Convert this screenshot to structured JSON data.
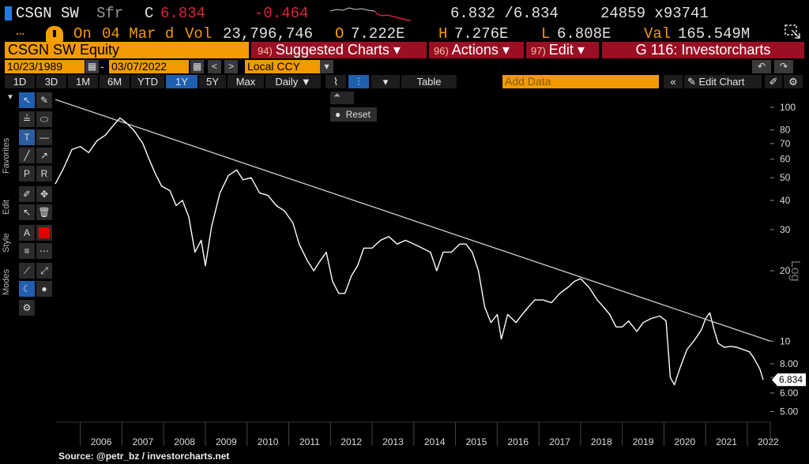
{
  "header": {
    "ticker": "CSGN SW",
    "currency": "Sfr",
    "last_label": "C",
    "last_price": "6.834",
    "change": "-0.464",
    "bid_ask": "6.832 /6.834",
    "size": "24859 x93741",
    "dots": "…",
    "on_label": "On",
    "date": "04 Mar d",
    "vol_label": "Vol",
    "volume": "23,796,746",
    "open_label": "O",
    "open": "7.222E",
    "high_label": "H",
    "high": "7.276E",
    "low_label": "L",
    "low": "6.808E",
    "val_label": "Val",
    "value": "165.549M"
  },
  "menus": {
    "security": "CSGN SW Equity",
    "suggested_num": "94)",
    "suggested": "Suggested Charts ▾",
    "actions_num": "96)",
    "actions": "Actions ▾",
    "edit_num": "97)",
    "edit": "Edit ▾",
    "function": "G 116: Investorcharts"
  },
  "dates": {
    "start": "10/23/1989",
    "dash": "-",
    "end": "03/07/2022",
    "prev": "<",
    "next": ">",
    "currency": "Local CCY"
  },
  "ranges": [
    "1D",
    "3D",
    "1M",
    "6M",
    "YTD",
    "1Y",
    "5Y",
    "Max"
  ],
  "active_range": "1Y",
  "frequency": "Daily ▼",
  "table_label": "Table",
  "add_data_placeholder": "Add Data",
  "edit_chart_label": "Edit Chart",
  "reset_label": "Reset",
  "side_labels": [
    "Favorites",
    "Edit",
    "Style",
    "Modes"
  ],
  "source": "Source: @petr_bz / investorcharts.net",
  "colors": {
    "price_line": "#ffffff",
    "trend_line": "#d0d0d0",
    "accent_orange": "#f29a00",
    "menu_red": "#9a0f23",
    "change_red": "#e0203a",
    "blue": "#1f5fb0"
  },
  "chart_data": {
    "type": "line",
    "scale": "log",
    "ylim": [
      4.5,
      115
    ],
    "y_ticks": [
      100,
      80,
      70,
      60,
      50,
      40,
      30,
      20,
      10,
      8.0,
      7.0,
      6.0,
      5.0
    ],
    "y_tick_labels": [
      "100",
      "80",
      "70",
      "60",
      "50",
      "40",
      "30",
      "20",
      "10",
      "8.00",
      "7.00",
      "6.00",
      "5.00"
    ],
    "y_axis_label": "Log",
    "x_ticks": [
      "2006",
      "2007",
      "2008",
      "2009",
      "2010",
      "2011",
      "2012",
      "2013",
      "2014",
      "2015",
      "2016",
      "2017",
      "2018",
      "2019",
      "2020",
      "2021",
      "2022"
    ],
    "xlim": [
      2005.4,
      2022.55
    ],
    "last_value_label": "6.834",
    "series": [
      {
        "values_xy": [
          [
            2005.4,
            47
          ],
          [
            2005.6,
            55
          ],
          [
            2005.8,
            66
          ],
          [
            2006.0,
            68
          ],
          [
            2006.2,
            64
          ],
          [
            2006.4,
            72
          ],
          [
            2006.6,
            76
          ],
          [
            2006.8,
            84
          ],
          [
            2006.95,
            90
          ],
          [
            2007.1,
            86
          ],
          [
            2007.3,
            79
          ],
          [
            2007.5,
            70
          ],
          [
            2007.65,
            60
          ],
          [
            2007.8,
            52
          ],
          [
            2007.95,
            46
          ],
          [
            2008.15,
            44
          ],
          [
            2008.3,
            38
          ],
          [
            2008.45,
            40
          ],
          [
            2008.6,
            34
          ],
          [
            2008.75,
            24
          ],
          [
            2008.9,
            27
          ],
          [
            2009.0,
            21
          ],
          [
            2009.15,
            31
          ],
          [
            2009.35,
            43
          ],
          [
            2009.55,
            51
          ],
          [
            2009.75,
            54
          ],
          [
            2009.9,
            49
          ],
          [
            2010.1,
            50
          ],
          [
            2010.3,
            43
          ],
          [
            2010.5,
            42
          ],
          [
            2010.7,
            38
          ],
          [
            2010.9,
            36
          ],
          [
            2011.1,
            32
          ],
          [
            2011.25,
            26
          ],
          [
            2011.45,
            22
          ],
          [
            2011.6,
            20
          ],
          [
            2011.75,
            22
          ],
          [
            2011.9,
            24
          ],
          [
            2012.05,
            18
          ],
          [
            2012.2,
            16
          ],
          [
            2012.35,
            16
          ],
          [
            2012.5,
            19
          ],
          [
            2012.65,
            21
          ],
          [
            2012.8,
            25
          ],
          [
            2013.0,
            25
          ],
          [
            2013.2,
            27
          ],
          [
            2013.4,
            28
          ],
          [
            2013.6,
            26
          ],
          [
            2013.8,
            27
          ],
          [
            2014.0,
            26
          ],
          [
            2014.2,
            25
          ],
          [
            2014.4,
            24
          ],
          [
            2014.55,
            20
          ],
          [
            2014.7,
            24
          ],
          [
            2014.9,
            24
          ],
          [
            2015.1,
            26
          ],
          [
            2015.25,
            26
          ],
          [
            2015.4,
            24
          ],
          [
            2015.55,
            20
          ],
          [
            2015.7,
            14
          ],
          [
            2015.85,
            12
          ],
          [
            2016.0,
            13
          ],
          [
            2016.1,
            10.2
          ],
          [
            2016.25,
            13
          ],
          [
            2016.45,
            12
          ],
          [
            2016.6,
            13
          ],
          [
            2016.75,
            14
          ],
          [
            2016.9,
            15
          ],
          [
            2017.1,
            15
          ],
          [
            2017.3,
            14.6
          ],
          [
            2017.5,
            16
          ],
          [
            2017.7,
            17
          ],
          [
            2017.85,
            18
          ],
          [
            2018.0,
            18.5
          ],
          [
            2018.2,
            17
          ],
          [
            2018.4,
            15
          ],
          [
            2018.55,
            14
          ],
          [
            2018.7,
            13
          ],
          [
            2018.85,
            11.5
          ],
          [
            2019.0,
            11.5
          ],
          [
            2019.15,
            12.2
          ],
          [
            2019.35,
            11
          ],
          [
            2019.5,
            12
          ],
          [
            2019.7,
            12.5
          ],
          [
            2019.9,
            12.8
          ],
          [
            2020.05,
            12.2
          ],
          [
            2020.15,
            7
          ],
          [
            2020.25,
            6.5
          ],
          [
            2020.4,
            7.8
          ],
          [
            2020.55,
            9.2
          ],
          [
            2020.75,
            10.2
          ],
          [
            2020.9,
            11.2
          ],
          [
            2021.0,
            12.5
          ],
          [
            2021.1,
            13.2
          ],
          [
            2021.2,
            11.2
          ],
          [
            2021.3,
            9.8
          ],
          [
            2021.45,
            9.4
          ],
          [
            2021.6,
            9.5
          ],
          [
            2021.75,
            9.4
          ],
          [
            2021.9,
            9.2
          ],
          [
            2022.05,
            9.0
          ],
          [
            2022.15,
            8.5
          ],
          [
            2022.3,
            7.6
          ],
          [
            2022.38,
            6.834
          ]
        ]
      },
      {
        "name": "",
        "values_xy": [
          [
            2005.4,
            108
          ],
          [
            2022.55,
            10
          ]
        ]
      }
    ]
  }
}
